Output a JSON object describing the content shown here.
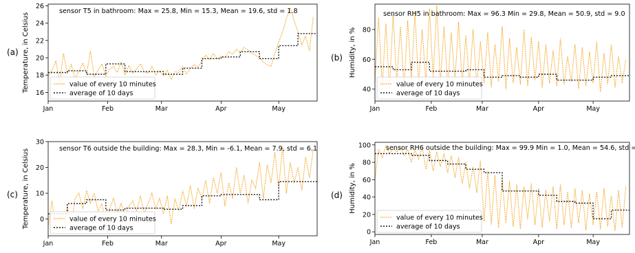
{
  "colors": {
    "raw": "#F5A623",
    "average": "#1a1a1a",
    "axes": "#000000"
  },
  "chart_data": [
    {
      "panel": "(a)",
      "type": "line",
      "annotation": "sensor T5 in bathroom: Max = 25.8, Min = 15.3, Mean = 19.6, std = 1.8",
      "ylabel": "Temperature, in Celsius",
      "xlabel": "",
      "xlim": [
        0,
        140
      ],
      "ylim": [
        15,
        26.2
      ],
      "yticks": [
        16,
        18,
        20,
        22,
        24,
        26
      ],
      "xticks": [
        {
          "label": "Jan",
          "day": 0
        },
        {
          "label": "Feb",
          "day": 31
        },
        {
          "label": "Mar",
          "day": 59
        },
        {
          "label": "Apr",
          "day": 90
        },
        {
          "label": "May",
          "day": 120
        }
      ],
      "legend": {
        "placement": "lower-left",
        "entries": [
          "value of every 10 minutes",
          "average of 10 days"
        ]
      },
      "series": [
        {
          "name": "value of every 10 minutes",
          "style": "dotted",
          "x": [
            0,
            2,
            4,
            6,
            8,
            10,
            12,
            14,
            16,
            18,
            20,
            22,
            24,
            26,
            28,
            30,
            32,
            34,
            36,
            38,
            40,
            42,
            44,
            46,
            48,
            50,
            52,
            54,
            56,
            58,
            60,
            62,
            64,
            66,
            68,
            70,
            72,
            74,
            76,
            78,
            80,
            82,
            84,
            86,
            88,
            90,
            92,
            94,
            96,
            98,
            100,
            102,
            104,
            106,
            108,
            110,
            112,
            114,
            116,
            118,
            120,
            122,
            124,
            126,
            128,
            130,
            132,
            134,
            136,
            138
          ],
          "y": [
            17.8,
            18.6,
            19.6,
            17.2,
            20.5,
            18.2,
            19.2,
            17.6,
            18.4,
            19.4,
            18.1,
            20.8,
            17.8,
            18.6,
            19.3,
            17.9,
            18.7,
            19.0,
            18.3,
            19.5,
            18.0,
            19.1,
            18.2,
            18.7,
            19.3,
            18.4,
            18.2,
            19.0,
            18.0,
            18.5,
            17.9,
            18.6,
            17.5,
            18.4,
            18.3,
            19.0,
            18.1,
            18.8,
            19.2,
            18.9,
            19.6,
            20.3,
            19.8,
            20.5,
            19.9,
            20.2,
            20.0,
            20.7,
            20.4,
            21.0,
            20.6,
            21.2,
            20.9,
            20.5,
            20.3,
            20.0,
            19.5,
            19.2,
            19.0,
            20.5,
            21.8,
            23.0,
            24.5,
            25.8,
            24.3,
            23.0,
            21.5,
            22.5,
            20.8,
            24.8
          ]
        },
        {
          "name": "average of 10 days",
          "style": "step",
          "x": [
            0,
            10,
            20,
            30,
            40,
            50,
            60,
            70,
            80,
            90,
            100,
            110,
            120,
            130,
            140
          ],
          "y": [
            18.3,
            18.5,
            18.1,
            19.3,
            18.4,
            18.4,
            18.1,
            18.8,
            19.9,
            20.1,
            20.7,
            19.9,
            21.4,
            22.8,
            22.8
          ]
        }
      ]
    },
    {
      "panel": "(b)",
      "type": "line",
      "annotation": "sensor RH5 in bathroom: Max = 96.3 Min = 29.8, Mean = 50.9, std = 9.0",
      "ylabel": "Humidity, in %",
      "xlabel": "",
      "xlim": [
        0,
        140
      ],
      "ylim": [
        32,
        97
      ],
      "yticks": [
        40,
        60,
        80
      ],
      "xticks": [
        {
          "label": "Jan",
          "day": 0
        },
        {
          "label": "Feb",
          "day": 31
        },
        {
          "label": "Mar",
          "day": 59
        },
        {
          "label": "Apr",
          "day": 90
        },
        {
          "label": "May",
          "day": 120
        }
      ],
      "legend": {
        "placement": "lower-left",
        "entries": [
          "value of every 10 minutes",
          "average of 10 days"
        ]
      },
      "series": [
        {
          "name": "value of every 10 minutes",
          "style": "dotted",
          "x": [
            0,
            2,
            4,
            6,
            8,
            10,
            12,
            14,
            16,
            18,
            20,
            22,
            24,
            26,
            28,
            30,
            32,
            34,
            36,
            38,
            40,
            42,
            44,
            46,
            48,
            50,
            52,
            54,
            56,
            58,
            60,
            62,
            64,
            66,
            68,
            70,
            72,
            74,
            76,
            78,
            80,
            82,
            84,
            86,
            88,
            90,
            92,
            94,
            96,
            98,
            100,
            102,
            104,
            106,
            108,
            110,
            112,
            114,
            116,
            118,
            120,
            122,
            124,
            126,
            128,
            130,
            132,
            134,
            136,
            138
          ],
          "y": [
            45,
            88,
            42,
            84,
            40,
            90,
            44,
            82,
            41,
            86,
            46,
            92,
            43,
            80,
            45,
            94,
            48,
            96,
            44,
            82,
            42,
            78,
            46,
            85,
            43,
            76,
            44,
            80,
            42,
            72,
            44,
            78,
            41,
            70,
            45,
            82,
            40,
            74,
            44,
            68,
            43,
            80,
            42,
            75,
            46,
            72,
            41,
            70,
            44,
            66,
            42,
            74,
            43,
            62,
            45,
            70,
            40,
            68,
            42,
            65,
            44,
            72,
            38,
            64,
            43,
            70,
            41,
            62,
            44,
            60
          ]
        },
        {
          "name": "average of 10 days",
          "style": "step",
          "x": [
            0,
            10,
            20,
            30,
            40,
            50,
            60,
            70,
            80,
            90,
            100,
            110,
            120,
            130,
            140
          ],
          "y": [
            55,
            53,
            58,
            52,
            52,
            53,
            48,
            49,
            48,
            50,
            46,
            46,
            48,
            49,
            49
          ]
        }
      ]
    },
    {
      "panel": "(c)",
      "type": "line",
      "annotation": "sensor T6 outside the building: Max = 28.3, Min = -6.1, Mean = 7.9, std = 6.1",
      "ylabel": "Temperature, in Celsius",
      "xlabel": "",
      "xlim": [
        0,
        140
      ],
      "ylim": [
        -6.5,
        30
      ],
      "yticks": [
        0,
        10,
        20,
        30
      ],
      "xticks": [
        {
          "label": "Jan",
          "day": 0
        },
        {
          "label": "Feb",
          "day": 31
        },
        {
          "label": "Mar",
          "day": 59
        },
        {
          "label": "Apr",
          "day": 90
        },
        {
          "label": "May",
          "day": 120
        }
      ],
      "legend": {
        "placement": "lower-left",
        "entries": [
          "value of every 10 minutes",
          "average of 10 days"
        ]
      },
      "series": [
        {
          "name": "value of every 10 minutes",
          "style": "dotted",
          "x": [
            0,
            2,
            4,
            6,
            8,
            10,
            12,
            14,
            16,
            18,
            20,
            22,
            24,
            26,
            28,
            30,
            32,
            34,
            36,
            38,
            40,
            42,
            44,
            46,
            48,
            50,
            52,
            54,
            56,
            58,
            60,
            62,
            64,
            66,
            68,
            70,
            72,
            74,
            76,
            78,
            80,
            82,
            84,
            86,
            88,
            90,
            92,
            94,
            96,
            98,
            100,
            102,
            104,
            106,
            108,
            110,
            112,
            114,
            116,
            118,
            120,
            122,
            124,
            126,
            128,
            130,
            132,
            134,
            136,
            138
          ],
          "y": [
            -3,
            7,
            -4,
            2,
            -5,
            5,
            -3,
            8,
            10,
            4,
            11,
            6,
            10,
            3,
            6,
            -1,
            4,
            8,
            2,
            6,
            1,
            5,
            7,
            3,
            9,
            2,
            6,
            10,
            4,
            8,
            2,
            9,
            -2,
            8,
            3,
            11,
            5,
            13,
            4,
            12,
            8,
            15,
            6,
            16,
            10,
            18,
            5,
            14,
            8,
            20,
            10,
            17,
            6,
            15,
            12,
            22,
            8,
            21,
            14,
            26,
            12,
            28,
            10,
            22,
            14,
            20,
            11,
            24,
            16,
            27
          ]
        },
        {
          "name": "average of 10 days",
          "style": "step",
          "x": [
            0,
            10,
            20,
            30,
            40,
            50,
            60,
            70,
            80,
            90,
            100,
            110,
            120,
            130,
            140
          ],
          "y": [
            2,
            6,
            7.5,
            3.5,
            4.2,
            4.2,
            3.8,
            5.2,
            9,
            9.5,
            9.5,
            7.5,
            14.5,
            14.5,
            14.5
          ]
        }
      ]
    },
    {
      "panel": "(d)",
      "type": "line",
      "annotation": "sensor RH6 outside the building: Max = 99.9 Min = 1.0, Mean = 54.6, std = 31.1",
      "ylabel": "Humidity, in %",
      "xlabel": "",
      "xlim": [
        0,
        140
      ],
      "ylim": [
        -3,
        103
      ],
      "yticks": [
        0,
        20,
        40,
        60,
        80,
        100
      ],
      "xticks": [
        {
          "label": "Jan",
          "day": 0
        },
        {
          "label": "Feb",
          "day": 31
        },
        {
          "label": "Mar",
          "day": 59
        },
        {
          "label": "Apr",
          "day": 90
        },
        {
          "label": "May",
          "day": 120
        }
      ],
      "legend": {
        "placement": "lower-left",
        "entries": [
          "value of every 10 minutes",
          "average of 10 days"
        ]
      },
      "series": [
        {
          "name": "value of every 10 minutes",
          "style": "dotted",
          "x": [
            0,
            2,
            4,
            6,
            8,
            10,
            12,
            14,
            16,
            18,
            20,
            22,
            24,
            26,
            28,
            30,
            32,
            34,
            36,
            38,
            40,
            42,
            44,
            46,
            48,
            50,
            52,
            54,
            56,
            58,
            60,
            62,
            64,
            66,
            68,
            70,
            72,
            74,
            76,
            78,
            80,
            82,
            84,
            86,
            88,
            90,
            92,
            94,
            96,
            98,
            100,
            102,
            104,
            106,
            108,
            110,
            112,
            114,
            116,
            118,
            120,
            122,
            124,
            126,
            128,
            130,
            132,
            134,
            136,
            138
          ],
          "y": [
            60,
            95,
            85,
            99,
            90,
            96,
            92,
            98,
            88,
            95,
            80,
            94,
            84,
            97,
            72,
            94,
            70,
            92,
            75,
            90,
            68,
            88,
            62,
            86,
            55,
            80,
            50,
            75,
            45,
            82,
            12,
            70,
            8,
            65,
            4,
            60,
            10,
            58,
            6,
            55,
            3,
            52,
            14,
            56,
            8,
            50,
            5,
            48,
            12,
            52,
            3,
            55,
            8,
            46,
            4,
            50,
            10,
            48,
            2,
            44,
            8,
            46,
            3,
            50,
            6,
            42,
            1,
            48,
            5,
            52
          ]
        },
        {
          "name": "average of 10 days",
          "style": "step",
          "x": [
            0,
            10,
            20,
            30,
            40,
            50,
            60,
            70,
            80,
            90,
            100,
            110,
            120,
            130,
            140
          ],
          "y": [
            90,
            90,
            88,
            82,
            78,
            72,
            68,
            47,
            47,
            42,
            35,
            33,
            15,
            25,
            25
          ]
        }
      ]
    }
  ]
}
